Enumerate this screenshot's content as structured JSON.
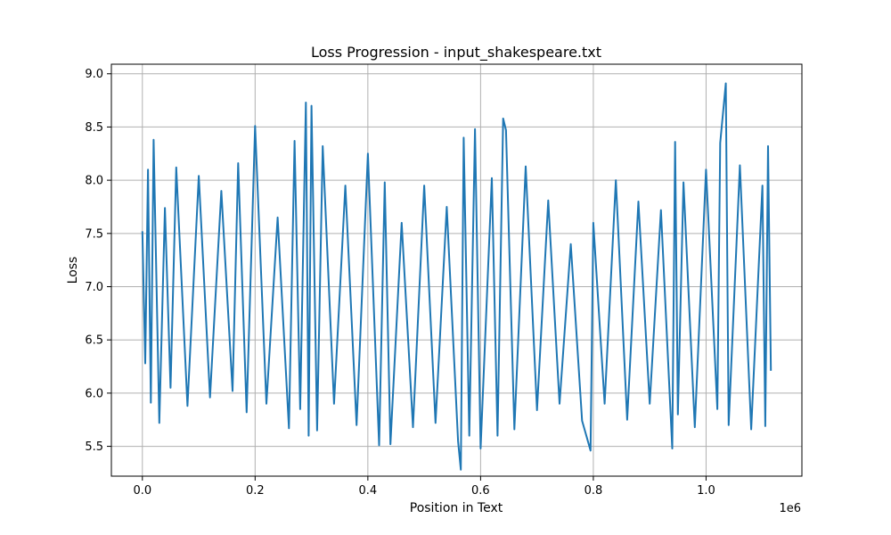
{
  "chart_data": {
    "type": "line",
    "title": "Loss Progression - input_shakespeare.txt",
    "xlabel": "Position in Text",
    "ylabel": "Loss",
    "x_offset_label": "1e6",
    "xlim": [
      -55000,
      1170000
    ],
    "ylim": [
      5.22,
      9.09
    ],
    "x_ticks": [
      0,
      200000,
      400000,
      600000,
      800000,
      1000000
    ],
    "x_tick_labels": [
      "0.0",
      "0.2",
      "0.4",
      "0.6",
      "0.8",
      "1.0"
    ],
    "y_ticks": [
      5.5,
      6.0,
      6.5,
      7.0,
      7.5,
      8.0,
      8.5,
      9.0
    ],
    "y_tick_labels": [
      "5.5",
      "6.0",
      "6.5",
      "7.0",
      "7.5",
      "8.0",
      "8.5",
      "9.0"
    ],
    "grid": true,
    "line_color": "#1f77b4",
    "series": [
      {
        "x": [
          0,
          5000,
          10000,
          15000,
          20000,
          30000,
          40000,
          50000,
          60000,
          80000,
          100000,
          120000,
          140000,
          160000,
          170000,
          185000,
          200000,
          220000,
          240000,
          260000,
          270000,
          280000,
          290000,
          295000,
          300000,
          310000,
          320000,
          340000,
          360000,
          380000,
          400000,
          420000,
          430000,
          440000,
          460000,
          480000,
          500000,
          520000,
          540000,
          560000,
          565000,
          570000,
          580000,
          590000,
          600000,
          620000,
          630000,
          640000,
          645000,
          660000,
          680000,
          700000,
          720000,
          740000,
          760000,
          780000,
          795000,
          800000,
          820000,
          840000,
          860000,
          880000,
          900000,
          920000,
          940000,
          945000,
          950000,
          960000,
          980000,
          1000000,
          1020000,
          1025000,
          1035000,
          1040000,
          1060000,
          1080000,
          1100000,
          1105000,
          1110000,
          1115000
        ],
        "y": [
          7.52,
          6.28,
          8.1,
          5.91,
          8.38,
          5.72,
          7.74,
          6.05,
          8.12,
          5.88,
          8.04,
          5.96,
          7.9,
          6.02,
          8.16,
          5.82,
          8.51,
          5.9,
          7.65,
          5.67,
          8.37,
          5.85,
          8.73,
          5.6,
          8.7,
          5.65,
          8.32,
          5.9,
          7.95,
          5.7,
          8.25,
          5.51,
          7.98,
          5.52,
          7.6,
          5.68,
          7.95,
          5.72,
          7.75,
          5.55,
          5.28,
          8.4,
          5.6,
          8.48,
          5.48,
          8.02,
          5.6,
          8.58,
          8.47,
          5.66,
          8.13,
          5.84,
          7.81,
          5.9,
          7.4,
          5.74,
          5.46,
          7.6,
          5.9,
          8.0,
          5.75,
          7.8,
          5.9,
          7.72,
          5.48,
          8.36,
          5.8,
          7.98,
          5.68,
          8.1,
          5.85,
          8.35,
          8.91,
          5.7,
          8.14,
          5.66,
          7.95,
          5.69,
          8.32,
          6.21
        ]
      }
    ]
  }
}
